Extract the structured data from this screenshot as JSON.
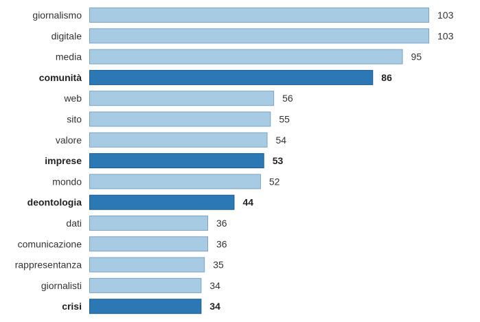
{
  "chart_data": {
    "type": "bar",
    "orientation": "horizontal",
    "title": "",
    "xlabel": "",
    "ylabel": "",
    "xlim": [
      0,
      103
    ],
    "grid": false,
    "categories": [
      "giornalismo",
      "digitale",
      "media",
      "comunità",
      "web",
      "sito",
      "valore",
      "imprese",
      "mondo",
      "deontologia",
      "dati",
      "comunicazione",
      "rappresentanza",
      "giornalisti",
      "crisi"
    ],
    "values": [
      103,
      103,
      95,
      86,
      56,
      55,
      54,
      53,
      52,
      44,
      36,
      36,
      35,
      34,
      34
    ],
    "highlighted": [
      "comunità",
      "imprese",
      "deontologia",
      "crisi"
    ],
    "colors": {
      "bar": "#a8cbe4",
      "bar_stroke": "#7aa3c4",
      "highlight": "#2b78b4",
      "highlight_stroke": "#1b5c8f"
    }
  }
}
